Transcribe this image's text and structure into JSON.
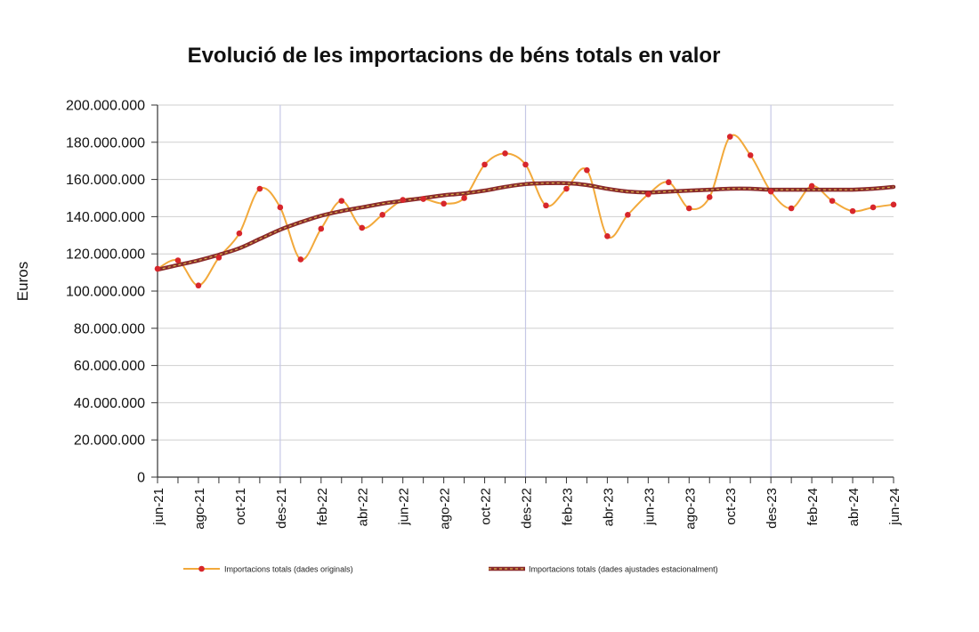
{
  "chart_data": {
    "type": "line",
    "title": "Evolució de les importacions de béns totals en valor",
    "ylabel": "Euros",
    "xlabel": "",
    "ylim": [
      0,
      200000000
    ],
    "yticks": [
      0,
      20000000,
      40000000,
      60000000,
      80000000,
      100000000,
      120000000,
      140000000,
      160000000,
      180000000,
      200000000
    ],
    "ytick_labels": [
      "0",
      "20.000.000",
      "40.000.000",
      "60.000.000",
      "80.000.000",
      "100.000.000",
      "120.000.000",
      "140.000.000",
      "160.000.000",
      "180.000.000",
      "200.000.000"
    ],
    "categories": [
      "jun-21",
      "jul-21",
      "ago-21",
      "set-21",
      "oct-21",
      "nov-21",
      "des-21",
      "gen-22",
      "feb-22",
      "mar-22",
      "abr-22",
      "mai-22",
      "jun-22",
      "jul-22",
      "ago-22",
      "set-22",
      "oct-22",
      "nov-22",
      "des-22",
      "gen-23",
      "feb-23",
      "mar-23",
      "abr-23",
      "mai-23",
      "jun-23",
      "jul-23",
      "ago-23",
      "set-23",
      "oct-23",
      "nov-23",
      "des-23",
      "gen-24",
      "feb-24",
      "mar-24",
      "abr-24",
      "mai-24",
      "jun-24"
    ],
    "xtick_labels": [
      "jun-21",
      "ago-21",
      "oct-21",
      "des-21",
      "feb-22",
      "abr-22",
      "jun-22",
      "ago-22",
      "oct-22",
      "des-22",
      "feb-23",
      "abr-23",
      "jun-23",
      "ago-23",
      "oct-23",
      "des-23",
      "feb-24",
      "abr-24",
      "jun-24"
    ],
    "year_separators": [
      "des-21",
      "des-22",
      "des-23"
    ],
    "grid": "horizontal",
    "legend_position": "bottom",
    "series": [
      {
        "name": "Importacions totals (dades originals)",
        "color": "#f2a93b",
        "marker_color": "#d7262b",
        "values": [
          112000000,
          116500000,
          103000000,
          118000000,
          131000000,
          155000000,
          145000000,
          117000000,
          133500000,
          148500000,
          134000000,
          141000000,
          149000000,
          149500000,
          147000000,
          150000000,
          168000000,
          174000000,
          168000000,
          146000000,
          155000000,
          165000000,
          129500000,
          141000000,
          152000000,
          158500000,
          144500000,
          150500000,
          183000000,
          173000000,
          153500000,
          144500000,
          156500000,
          148500000,
          143000000,
          145000000,
          146500000
        ]
      },
      {
        "name": "Importacions totals (dades ajustades estacionalment)",
        "color": "#8a2b2b",
        "dash_color": "#d9b44a",
        "values": [
          111500000,
          114000000,
          116500000,
          119500000,
          123000000,
          128000000,
          133000000,
          137000000,
          140500000,
          143000000,
          145000000,
          147000000,
          148500000,
          150000000,
          151500000,
          152500000,
          154000000,
          156000000,
          157500000,
          158000000,
          158000000,
          157000000,
          155000000,
          153500000,
          153000000,
          153500000,
          154000000,
          154500000,
          155000000,
          155000000,
          154500000,
          154500000,
          154500000,
          154500000,
          154500000,
          155000000,
          156000000
        ]
      }
    ]
  }
}
